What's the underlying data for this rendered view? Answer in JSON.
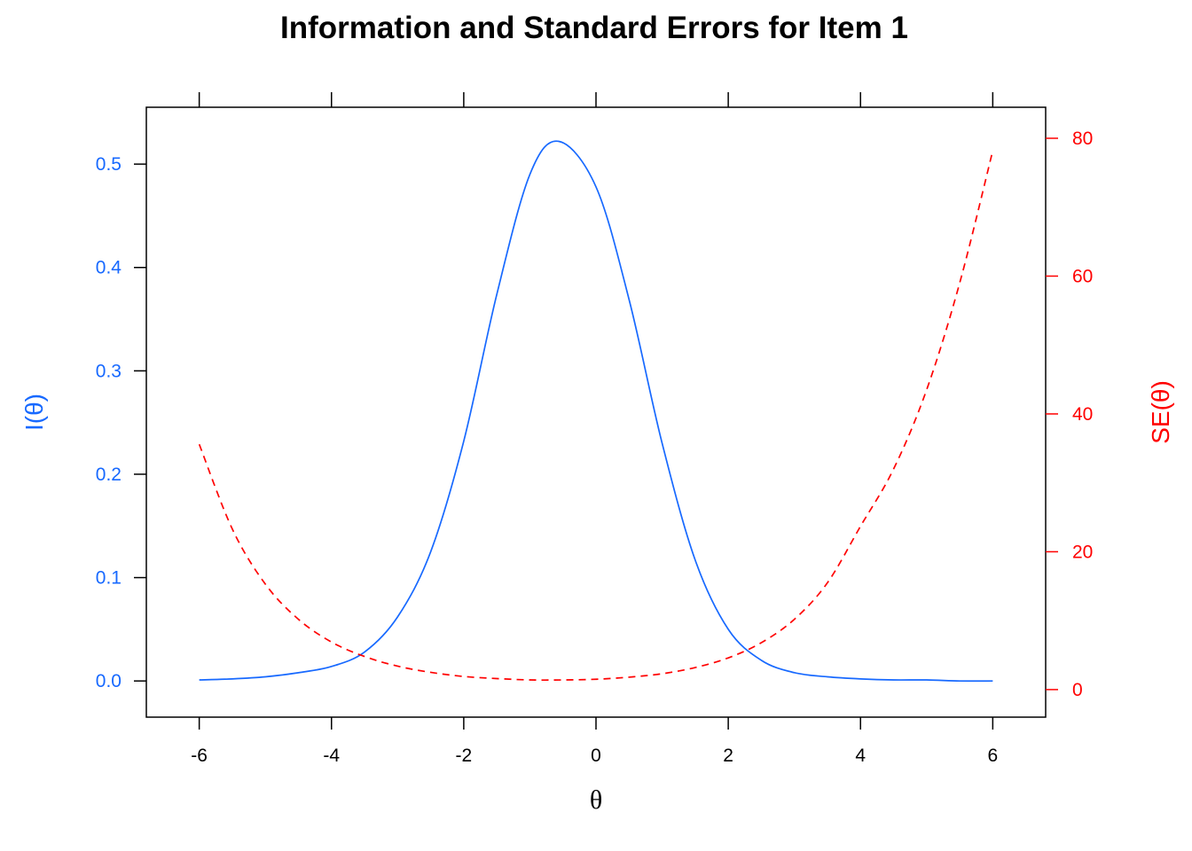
{
  "chart_data": {
    "type": "line",
    "title": "Information and Standard Errors for Item 1",
    "xlabel": "θ",
    "ylabel_left": "I(θ)",
    "ylabel_right": "SE(θ)",
    "xlim": [
      -6.8,
      6.8
    ],
    "ylim_left": [
      -0.035,
      0.555
    ],
    "ylim_right": [
      -4.0,
      84.5
    ],
    "x_ticks": [
      -6,
      -4,
      -2,
      0,
      2,
      4,
      6
    ],
    "y_ticks_left": [
      0.0,
      0.1,
      0.2,
      0.3,
      0.4,
      0.5
    ],
    "y_ticks_right": [
      0,
      20,
      40,
      60,
      80
    ],
    "grid": false,
    "legend": "none",
    "colors": {
      "information": "#1769ff",
      "se": "#ff0000",
      "axes": "#000000"
    },
    "series": [
      {
        "axis": "left",
        "style": "solid",
        "x": [
          -6,
          -5.5,
          -5,
          -4.5,
          -4,
          -3.5,
          -3,
          -2.5,
          -2,
          -1.5,
          -1,
          -0.56,
          0,
          0.5,
          1,
          1.5,
          2,
          2.5,
          3,
          3.5,
          4,
          4.5,
          5,
          5.5,
          6
        ],
        "values": [
          0.001,
          0.002,
          0.004,
          0.008,
          0.014,
          0.028,
          0.062,
          0.125,
          0.232,
          0.374,
          0.49,
          0.522,
          0.478,
          0.369,
          0.23,
          0.117,
          0.05,
          0.02,
          0.008,
          0.004,
          0.002,
          0.001,
          0.001,
          0.0,
          0.0
        ]
      },
      {
        "axis": "right",
        "style": "dashed",
        "x": [
          -6,
          -5.5,
          -5,
          -4.5,
          -4,
          -3.5,
          -3,
          -2.5,
          -2,
          -1.5,
          -1,
          -0.5,
          0,
          0.5,
          1,
          1.5,
          2,
          2.5,
          3,
          3.5,
          4,
          4.5,
          5,
          5.5,
          6
        ],
        "values": [
          35.6,
          23.3,
          15.3,
          10.2,
          6.9,
          4.8,
          3.4,
          2.5,
          1.9,
          1.6,
          1.4,
          1.4,
          1.5,
          1.8,
          2.3,
          3.2,
          4.6,
          6.8,
          10.2,
          15.5,
          23.7,
          32.0,
          43.5,
          59.0,
          78.2
        ]
      }
    ]
  }
}
